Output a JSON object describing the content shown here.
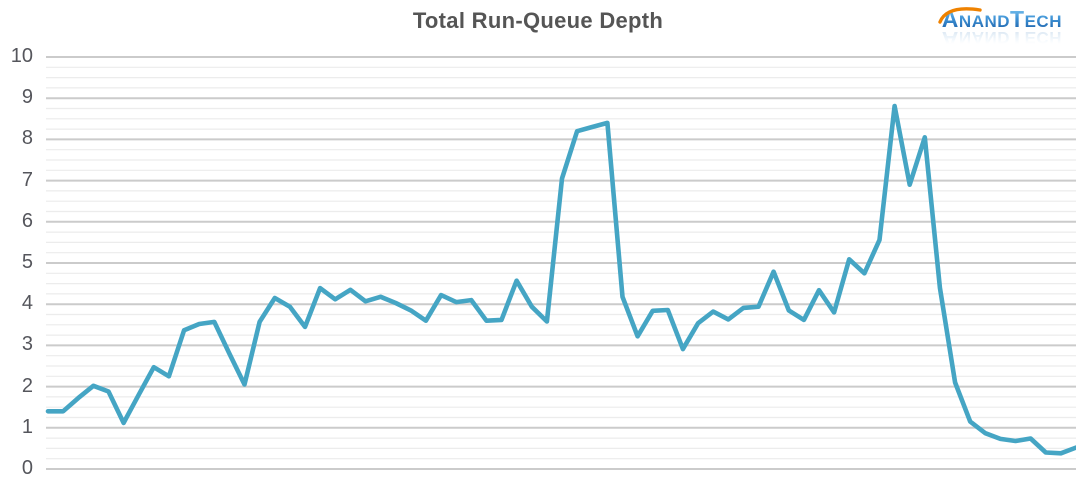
{
  "header": {
    "title": "Total Run-Queue Depth",
    "logo": {
      "part_a": "A",
      "part_nand": "NAND",
      "part_t": "T",
      "part_ech": "ECH"
    }
  },
  "colors": {
    "background": "#ffffff",
    "title_text": "#555555",
    "axis_label_text": "#55565c",
    "grid_major": "#cbcbcb",
    "grid_minor": "#ececec",
    "line": "#45a5c4",
    "logo_blue_top": "#7cc4ee",
    "logo_blue_bottom": "#1b5fa8",
    "logo_swoosh_orange": "#ef8200"
  },
  "chart_data": {
    "type": "line",
    "title": "Total Run-Queue Depth",
    "xlabel": "",
    "ylabel": "",
    "x_axis_labels": "none",
    "legend": "none",
    "grid": "on",
    "ylim": [
      0,
      10
    ],
    "y_ticks": [
      0,
      1,
      2,
      3,
      4,
      5,
      6,
      7,
      8,
      9,
      10
    ],
    "y_minor_step": 0.25,
    "series": [
      {
        "name": "Total Run-Queue Depth",
        "values": [
          1.4,
          1.4,
          1.72,
          2.02,
          1.88,
          1.12,
          1.8,
          2.47,
          2.25,
          3.37,
          3.52,
          3.57,
          2.8,
          2.05,
          3.57,
          4.15,
          3.94,
          3.45,
          4.39,
          4.12,
          4.35,
          4.07,
          4.18,
          4.03,
          3.85,
          3.6,
          4.22,
          4.05,
          4.1,
          3.6,
          3.62,
          4.57,
          3.94,
          3.58,
          7.05,
          8.2,
          8.3,
          8.4,
          4.18,
          3.22,
          3.84,
          3.86,
          2.91,
          3.54,
          3.82,
          3.63,
          3.91,
          3.94,
          4.79,
          3.85,
          3.62,
          4.34,
          3.8,
          5.09,
          4.75,
          5.56,
          8.81,
          6.9,
          8.05,
          4.4,
          2.1,
          1.15,
          0.87,
          0.73,
          0.68,
          0.74,
          0.4,
          0.38,
          0.52
        ]
      }
    ]
  }
}
